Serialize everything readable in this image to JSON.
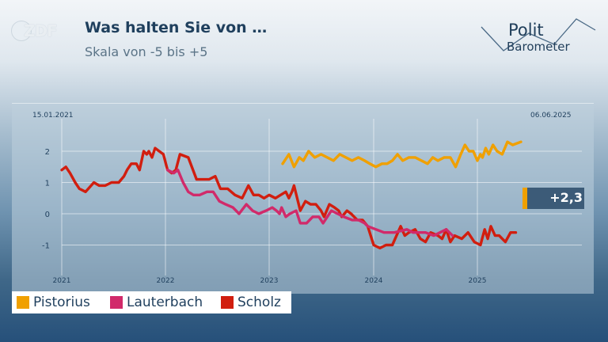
{
  "header": {
    "logo": "ZDF",
    "title": "Was halten Sie von …",
    "subtitle": "Skala von -5 bis +5",
    "brand_line1": "Polit",
    "brand_line2": "Barometer"
  },
  "dates": {
    "start": "15.01.2021",
    "end": "06.06.2025"
  },
  "badge": {
    "value": "+2,3",
    "color": "#f0a000"
  },
  "legend": [
    {
      "label": "Pistorius",
      "color": "#f0a000"
    },
    {
      "label": "Lauterbach",
      "color": "#d12a6a"
    },
    {
      "label": "Scholz",
      "color": "#d11e0f"
    }
  ],
  "chart_data": {
    "type": "line",
    "x_ticks": [
      "2021",
      "2022",
      "2023",
      "2024",
      "2025"
    ],
    "y_ticks": [
      "2",
      "1",
      "0",
      "-1"
    ],
    "ylim": [
      -1.5,
      2.5
    ],
    "grid": true,
    "series": [
      {
        "name": "Scholz",
        "color": "#d11e0f",
        "points": [
          [
            2021.0,
            1.4
          ],
          [
            2021.04,
            1.5
          ],
          [
            2021.08,
            1.3
          ],
          [
            2021.13,
            1.0
          ],
          [
            2021.17,
            0.8
          ],
          [
            2021.23,
            0.7
          ],
          [
            2021.31,
            1.0
          ],
          [
            2021.36,
            0.9
          ],
          [
            2021.42,
            0.9
          ],
          [
            2021.48,
            1.0
          ],
          [
            2021.55,
            1.0
          ],
          [
            2021.6,
            1.2
          ],
          [
            2021.63,
            1.4
          ],
          [
            2021.67,
            1.6
          ],
          [
            2021.72,
            1.6
          ],
          [
            2021.75,
            1.4
          ],
          [
            2021.79,
            2.0
          ],
          [
            2021.82,
            1.9
          ],
          [
            2021.84,
            2.0
          ],
          [
            2021.87,
            1.8
          ],
          [
            2021.9,
            2.1
          ],
          [
            2021.94,
            2.0
          ],
          [
            2021.98,
            1.9
          ],
          [
            2022.02,
            1.4
          ],
          [
            2022.06,
            1.3
          ],
          [
            2022.1,
            1.4
          ],
          [
            2022.14,
            1.9
          ],
          [
            2022.22,
            1.8
          ],
          [
            2022.3,
            1.1
          ],
          [
            2022.36,
            1.1
          ],
          [
            2022.42,
            1.1
          ],
          [
            2022.48,
            1.2
          ],
          [
            2022.53,
            0.8
          ],
          [
            2022.6,
            0.8
          ],
          [
            2022.67,
            0.6
          ],
          [
            2022.74,
            0.5
          ],
          [
            2022.8,
            0.9
          ],
          [
            2022.85,
            0.6
          ],
          [
            2022.9,
            0.6
          ],
          [
            2022.95,
            0.5
          ],
          [
            2023.0,
            0.6
          ],
          [
            2023.06,
            0.5
          ],
          [
            2023.11,
            0.6
          ],
          [
            2023.16,
            0.7
          ],
          [
            2023.19,
            0.5
          ],
          [
            2023.22,
            0.7
          ],
          [
            2023.24,
            0.9
          ],
          [
            2023.3,
            0.1
          ],
          [
            2023.35,
            0.4
          ],
          [
            2023.4,
            0.3
          ],
          [
            2023.45,
            0.3
          ],
          [
            2023.5,
            0.1
          ],
          [
            2023.53,
            -0.1
          ],
          [
            2023.58,
            0.3
          ],
          [
            2023.63,
            0.2
          ],
          [
            2023.67,
            0.1
          ],
          [
            2023.7,
            -0.1
          ],
          [
            2023.75,
            0.1
          ],
          [
            2023.79,
            0.0
          ],
          [
            2023.85,
            -0.2
          ],
          [
            2023.9,
            -0.2
          ],
          [
            2023.95,
            -0.4
          ],
          [
            2024.0,
            -1.0
          ],
          [
            2024.06,
            -1.1
          ],
          [
            2024.12,
            -1.0
          ],
          [
            2024.18,
            -1.0
          ],
          [
            2024.26,
            -0.4
          ],
          [
            2024.3,
            -0.7
          ],
          [
            2024.34,
            -0.6
          ],
          [
            2024.4,
            -0.5
          ],
          [
            2024.45,
            -0.8
          ],
          [
            2024.5,
            -0.9
          ],
          [
            2024.55,
            -0.6
          ],
          [
            2024.62,
            -0.7
          ],
          [
            2024.66,
            -0.8
          ],
          [
            2024.7,
            -0.5
          ],
          [
            2024.74,
            -0.9
          ],
          [
            2024.78,
            -0.7
          ],
          [
            2024.85,
            -0.8
          ],
          [
            2024.91,
            -0.6
          ],
          [
            2024.97,
            -0.9
          ],
          [
            2025.03,
            -1.0
          ],
          [
            2025.07,
            -0.5
          ],
          [
            2025.1,
            -0.8
          ],
          [
            2025.13,
            -0.4
          ],
          [
            2025.17,
            -0.7
          ],
          [
            2025.21,
            -0.7
          ],
          [
            2025.27,
            -0.9
          ],
          [
            2025.32,
            -0.6
          ],
          [
            2025.37,
            -0.6
          ]
        ]
      },
      {
        "name": "Lauterbach",
        "color": "#d12a6a",
        "points": [
          [
            2022.02,
            1.4
          ],
          [
            2022.08,
            1.3
          ],
          [
            2022.12,
            1.4
          ],
          [
            2022.17,
            1.0
          ],
          [
            2022.22,
            0.7
          ],
          [
            2022.27,
            0.6
          ],
          [
            2022.33,
            0.6
          ],
          [
            2022.4,
            0.7
          ],
          [
            2022.46,
            0.7
          ],
          [
            2022.52,
            0.4
          ],
          [
            2022.58,
            0.3
          ],
          [
            2022.65,
            0.2
          ],
          [
            2022.71,
            0.0
          ],
          [
            2022.78,
            0.3
          ],
          [
            2022.84,
            0.1
          ],
          [
            2022.9,
            0.0
          ],
          [
            2022.97,
            0.1
          ],
          [
            2023.03,
            0.2
          ],
          [
            2023.07,
            0.1
          ],
          [
            2023.1,
            0.0
          ],
          [
            2023.12,
            0.2
          ],
          [
            2023.16,
            -0.1
          ],
          [
            2023.2,
            0.0
          ],
          [
            2023.26,
            0.1
          ],
          [
            2023.3,
            -0.3
          ],
          [
            2023.36,
            -0.3
          ],
          [
            2023.42,
            -0.1
          ],
          [
            2023.48,
            -0.1
          ],
          [
            2023.52,
            -0.3
          ],
          [
            2023.56,
            -0.1
          ],
          [
            2023.6,
            0.1
          ],
          [
            2023.66,
            0.0
          ],
          [
            2023.72,
            -0.1
          ],
          [
            2023.8,
            -0.2
          ],
          [
            2023.86,
            -0.2
          ],
          [
            2023.92,
            -0.3
          ],
          [
            2023.95,
            -0.4
          ],
          [
            2024.1,
            -0.6
          ],
          [
            2024.2,
            -0.6
          ],
          [
            2024.32,
            -0.5
          ],
          [
            2024.38,
            -0.6
          ],
          [
            2024.5,
            -0.6
          ],
          [
            2024.58,
            -0.7
          ],
          [
            2024.64,
            -0.6
          ],
          [
            2024.7,
            -0.5
          ],
          [
            2024.76,
            -0.7
          ]
        ]
      },
      {
        "name": "Pistorius",
        "color": "#f0a000",
        "points": [
          [
            2023.13,
            1.6
          ],
          [
            2023.19,
            1.9
          ],
          [
            2023.24,
            1.5
          ],
          [
            2023.29,
            1.8
          ],
          [
            2023.33,
            1.7
          ],
          [
            2023.38,
            2.0
          ],
          [
            2023.44,
            1.8
          ],
          [
            2023.5,
            1.9
          ],
          [
            2023.56,
            1.8
          ],
          [
            2023.62,
            1.7
          ],
          [
            2023.68,
            1.9
          ],
          [
            2023.74,
            1.8
          ],
          [
            2023.8,
            1.7
          ],
          [
            2023.86,
            1.8
          ],
          [
            2023.92,
            1.7
          ],
          [
            2023.97,
            1.6
          ],
          [
            2024.02,
            1.5
          ],
          [
            2024.08,
            1.6
          ],
          [
            2024.13,
            1.6
          ],
          [
            2024.18,
            1.7
          ],
          [
            2024.23,
            1.9
          ],
          [
            2024.28,
            1.7
          ],
          [
            2024.34,
            1.8
          ],
          [
            2024.4,
            1.8
          ],
          [
            2024.46,
            1.7
          ],
          [
            2024.52,
            1.6
          ],
          [
            2024.57,
            1.8
          ],
          [
            2024.62,
            1.7
          ],
          [
            2024.68,
            1.8
          ],
          [
            2024.74,
            1.8
          ],
          [
            2024.79,
            1.5
          ],
          [
            2024.84,
            1.9
          ],
          [
            2024.88,
            2.2
          ],
          [
            2024.92,
            2.0
          ],
          [
            2024.96,
            2.0
          ],
          [
            2025.0,
            1.7
          ],
          [
            2025.03,
            1.9
          ],
          [
            2025.05,
            1.8
          ],
          [
            2025.08,
            2.1
          ],
          [
            2025.11,
            1.9
          ],
          [
            2025.15,
            2.2
          ],
          [
            2025.19,
            2.0
          ],
          [
            2025.24,
            1.9
          ],
          [
            2025.29,
            2.3
          ],
          [
            2025.34,
            2.2
          ],
          [
            2025.42,
            2.3
          ]
        ]
      }
    ]
  }
}
